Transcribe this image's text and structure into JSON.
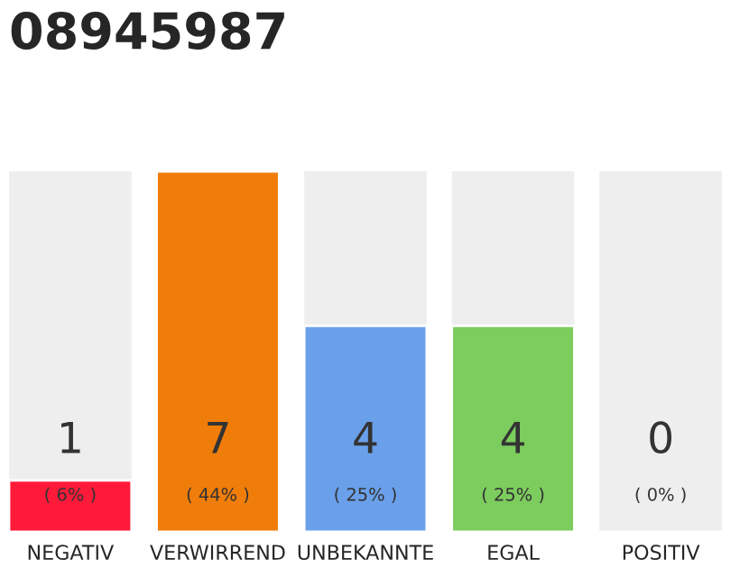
{
  "chart_data": {
    "type": "bar",
    "title": "08945987",
    "categories": [
      "NEGATIV",
      "VERWIRREND",
      "UNBEKANNTE",
      "EGAL",
      "POSITIV"
    ],
    "values": [
      1,
      7,
      4,
      4,
      0
    ],
    "colors": [
      "#ff1a3a",
      "#f07d0a",
      "#6aa0ea",
      "#7ccc5e",
      null
    ],
    "data_labels": true,
    "annotations": [
      {
        "text": "( 6% )",
        "x": "NEGATIV",
        "y": 0
      },
      {
        "text": "( 44% )",
        "x": "VERWIRREND",
        "y": 0
      },
      {
        "text": "( 25% )",
        "x": "UNBEKANNTE",
        "y": 0
      },
      {
        "text": "( 25% )",
        "x": "EGAL",
        "y": 0
      },
      {
        "text": "( 0% )",
        "x": "POSITIV",
        "y": 0
      }
    ]
  }
}
